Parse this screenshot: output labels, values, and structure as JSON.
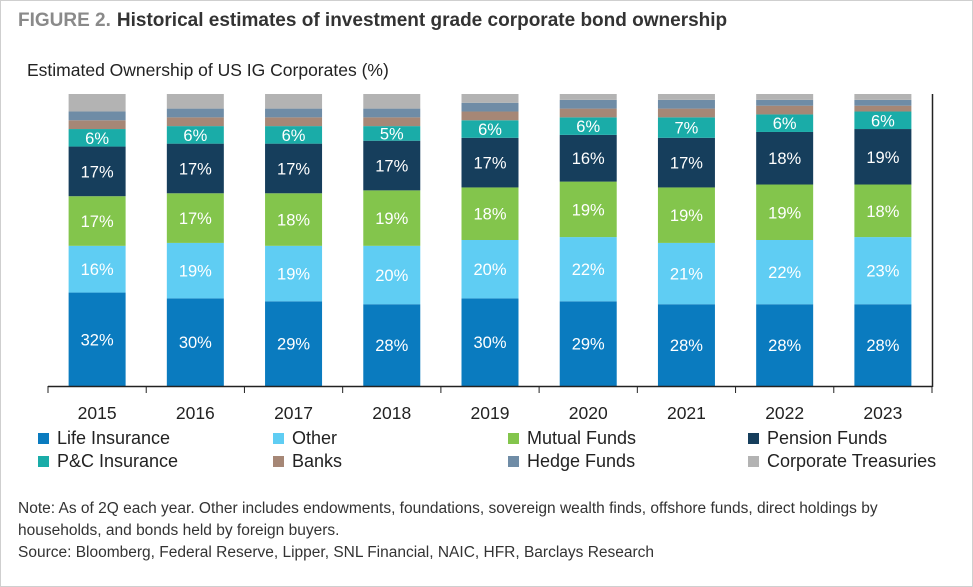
{
  "figure": {
    "number": "FIGURE 2.",
    "title": "Historical estimates of investment grade corporate bond ownership"
  },
  "chart_data": {
    "type": "bar",
    "stacked": true,
    "title": "Estimated Ownership of US IG Corporates (%)",
    "xlabel": "",
    "ylabel": "",
    "ylim": [
      0,
      100
    ],
    "grid": false,
    "legend_position": "bottom",
    "categories": [
      "2015",
      "2016",
      "2017",
      "2018",
      "2019",
      "2020",
      "2021",
      "2022",
      "2023"
    ],
    "series": [
      {
        "name": "Life Insurance",
        "color": "#0a7bbf",
        "values": [
          32,
          30,
          29,
          28,
          30,
          29,
          28,
          28,
          28
        ],
        "labels": [
          "32%",
          "30%",
          "29%",
          "28%",
          "30%",
          "29%",
          "28%",
          "28%",
          "28%"
        ]
      },
      {
        "name": "Other",
        "color": "#5fcdf3",
        "values": [
          16,
          19,
          19,
          20,
          20,
          22,
          21,
          22,
          23
        ],
        "labels": [
          "16%",
          "19%",
          "19%",
          "20%",
          "20%",
          "22%",
          "21%",
          "22%",
          "23%"
        ]
      },
      {
        "name": "Mutual Funds",
        "color": "#83c54c",
        "values": [
          17,
          17,
          18,
          19,
          18,
          19,
          19,
          19,
          18
        ],
        "labels": [
          "17%",
          "17%",
          "18%",
          "19%",
          "18%",
          "19%",
          "19%",
          "19%",
          "18%"
        ]
      },
      {
        "name": "Pension Funds",
        "color": "#163e5c",
        "values": [
          17,
          17,
          17,
          17,
          17,
          16,
          17,
          18,
          19
        ],
        "labels": [
          "17%",
          "17%",
          "17%",
          "17%",
          "17%",
          "16%",
          "17%",
          "18%",
          "19%"
        ]
      },
      {
        "name": "P&C Insurance",
        "color": "#1aaca8",
        "values": [
          6,
          6,
          6,
          5,
          6,
          6,
          7,
          6,
          6
        ],
        "labels": [
          "6%",
          "6%",
          "6%",
          "5%",
          "6%",
          "6%",
          "7%",
          "6%",
          "6%"
        ]
      },
      {
        "name": "Banks",
        "color": "#a68776",
        "values": [
          3,
          3,
          3,
          3,
          3,
          3,
          3,
          3,
          2
        ]
      },
      {
        "name": "Hedge Funds",
        "color": "#6f8ca6",
        "values": [
          3,
          3,
          3,
          3,
          3,
          3,
          3,
          2,
          2
        ]
      },
      {
        "name": "Corporate Treasuries",
        "color": "#b3b3b3",
        "values": [
          6,
          5,
          5,
          5,
          3,
          2,
          2,
          2,
          2
        ]
      }
    ]
  },
  "note": "Note: As of 2Q each year. Other includes endowments, foundations, sovereign wealth finds, offshore funds, direct holdings by households, and bonds held by foreign buyers.",
  "source": "Source: Bloomberg, Federal Reserve, Lipper, SNL Financial, NAIC, HFR, Barclays Research"
}
